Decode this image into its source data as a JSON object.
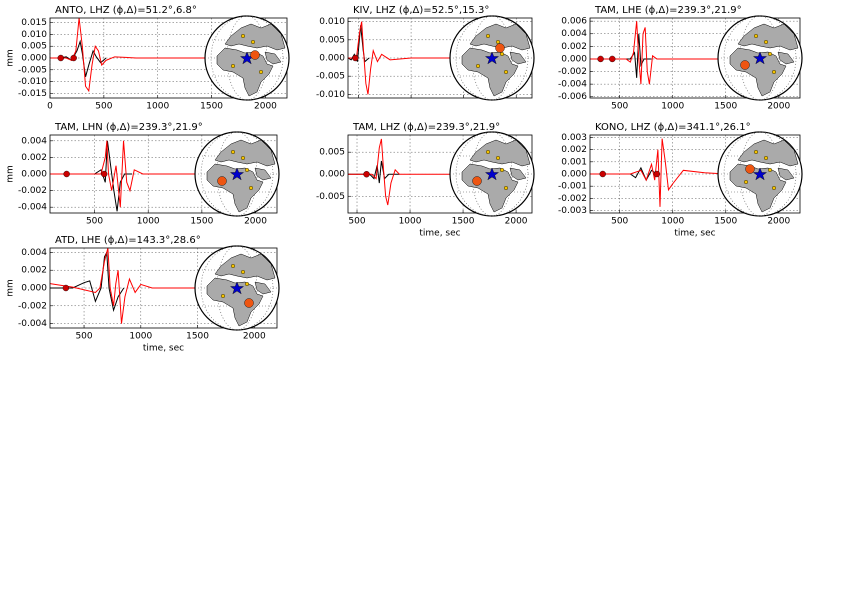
{
  "chart_data": [
    {
      "type": "line",
      "title": "ANTO, LHZ (ϕ,Δ)=51.2°,6.8°",
      "ylabel": "mm",
      "grid": true,
      "xlim": [
        0,
        2200
      ],
      "xticks": [
        0,
        500,
        1000,
        1500,
        2000
      ],
      "ylim": [
        -0.017,
        0.017
      ],
      "yticks": [
        0.015,
        {
          "value": 0.01,
          "label": "0.010"
        },
        0.005,
        {
          "value": 0,
          "label": "0.000"
        },
        -0.005,
        {
          "value": -0.01,
          "label": "-0.010"
        },
        -0.015
      ],
      "series": [
        {
          "color": "#000000",
          "x": [
            0,
            100,
            150,
            200,
            250,
            280,
            300,
            330,
            360,
            400,
            430,
            470,
            520
          ],
          "values": [
            0,
            0,
            0.0005,
            -0.001,
            0.003,
            0.007,
            0.002,
            -0.008,
            -0.003,
            0.003,
            0.0005,
            -0.002,
            0
          ]
        },
        {
          "color": "#ff0000",
          "x": [
            0,
            150,
            200,
            240,
            270,
            300,
            330,
            360,
            390,
            420,
            450,
            480,
            520,
            600,
            800,
            2200
          ],
          "values": [
            0,
            0,
            -0.001,
            0.003,
            0.017,
            0.005,
            -0.012,
            -0.014,
            -0.003,
            0.005,
            0.003,
            -0.003,
            -0.001,
            0.0005,
            0,
            0
          ]
        }
      ],
      "markers": {
        "color": "#cc0000",
        "x": [
          100,
          220
        ],
        "values": [
          0,
          0
        ]
      }
    },
    {
      "type": "line",
      "title": "KIV, LHZ (ϕ,Δ)=52.5°,15.3°",
      "grid": true,
      "xtick_labels": false,
      "xlim": [
        400,
        2150
      ],
      "xticks": [
        500,
        1000,
        1500,
        2000
      ],
      "ylim": [
        -0.011,
        0.011
      ],
      "yticks": [
        {
          "value": 0.01,
          "label": "0.010"
        },
        0.005,
        {
          "value": 0,
          "label": "0.000"
        },
        -0.005,
        {
          "value": -0.01,
          "label": "-0.010"
        }
      ],
      "series": [
        {
          "color": "#000000",
          "x": [
            400,
            430,
            460,
            490,
            520,
            545,
            560,
            600
          ],
          "values": [
            0,
            -0.0005,
            0.001,
            -0.001,
            0.009,
            0.002,
            -0.001,
            0
          ]
        },
        {
          "color": "#ff0000",
          "x": [
            400,
            480,
            510,
            530,
            550,
            570,
            590,
            615,
            640,
            680,
            720,
            800,
            1000,
            2150
          ],
          "values": [
            0,
            0,
            0.007,
            0.01,
            0.001,
            -0.007,
            -0.01,
            -0.003,
            0.002,
            -0.001,
            0.001,
            -0.0005,
            0,
            0
          ]
        }
      ],
      "markers": {
        "color": "#cc0000",
        "x": [
          470
        ],
        "values": [
          0
        ]
      }
    },
    {
      "type": "line",
      "title": "TAM, LHE (ϕ,Δ)=239.3°,21.9°",
      "grid": true,
      "xlim": [
        220,
        2200
      ],
      "xticks": [
        500,
        1000,
        1500,
        2000
      ],
      "ylim": [
        -0.0062,
        0.0065
      ],
      "yticks": [
        0.006,
        0.004,
        0.002,
        {
          "value": 0,
          "label": "0.000"
        },
        -0.002,
        -0.004,
        -0.006
      ],
      "series": [
        {
          "color": "#000000",
          "x": [
            220,
            600,
            640,
            660,
            680,
            700,
            730,
            800
          ],
          "values": [
            0,
            0,
            0.001,
            -0.003,
            0.004,
            -0.001,
            0,
            0
          ]
        },
        {
          "color": "#ff0000",
          "x": [
            220,
            560,
            600,
            630,
            660,
            680,
            700,
            720,
            740,
            760,
            780,
            810,
            850,
            2200
          ],
          "values": [
            0,
            0,
            -0.0005,
            0.001,
            0.006,
            0,
            -0.004,
            0.004,
            0.005,
            -0.002,
            -0.004,
            0.0005,
            0,
            0
          ]
        }
      ],
      "markers": {
        "color": "#cc0000",
        "x": [
          320,
          430
        ],
        "values": [
          0,
          0
        ]
      }
    },
    {
      "type": "line",
      "title": "TAM, LHN (ϕ,Δ)=239.3°,21.9°",
      "ylabel": "mm",
      "grid": true,
      "xlim": [
        85,
        2200
      ],
      "xticks": [
        500,
        1000,
        1500,
        2000
      ],
      "ylim": [
        -0.0047,
        0.0047
      ],
      "yticks": [
        0.004,
        0.002,
        {
          "value": 0,
          "label": "0.000"
        },
        -0.002,
        -0.004
      ],
      "series": [
        {
          "color": "#000000",
          "x": [
            85,
            500,
            560,
            600,
            620,
            650,
            680,
            710,
            740,
            780,
            850
          ],
          "values": [
            0,
            0,
            0.0005,
            -0.001,
            0.004,
            0.001,
            -0.002,
            -0.0045,
            -0.001,
            0,
            0
          ]
        },
        {
          "color": "#ff0000",
          "x": [
            85,
            560,
            600,
            615,
            630,
            660,
            700,
            740,
            770,
            800,
            830,
            870,
            950,
            2200
          ],
          "values": [
            0,
            0,
            0.002,
            0.004,
            0,
            -0.002,
            0.001,
            -0.004,
            0.004,
            -0.001,
            -0.002,
            0.0005,
            0,
            0
          ]
        }
      ],
      "markers": {
        "color": "#cc0000",
        "x": [
          240,
          590
        ],
        "values": [
          0,
          0
        ]
      }
    },
    {
      "type": "line",
      "title": "TAM, LHZ (ϕ,Δ)=239.3°,21.9°",
      "xlabel": "time, sec",
      "grid": true,
      "xlim": [
        415,
        2150
      ],
      "xticks": [
        500,
        1000,
        1500,
        2000
      ],
      "ylim": [
        -0.0088,
        0.0089
      ],
      "yticks": [
        0.005,
        {
          "value": 0,
          "label": "0.000"
        },
        -0.005
      ],
      "series": [
        {
          "color": "#000000",
          "x": [
            415,
            620,
            660,
            690,
            710,
            730,
            760,
            800,
            900
          ],
          "values": [
            0,
            0,
            -0.001,
            0.002,
            -0.002,
            0.003,
            -0.001,
            0,
            0
          ]
        },
        {
          "color": "#ff0000",
          "x": [
            415,
            640,
            680,
            710,
            730,
            750,
            770,
            790,
            820,
            860,
            900,
            2150
          ],
          "values": [
            0,
            0,
            -0.001,
            0.006,
            0.008,
            0.001,
            -0.005,
            -0.007,
            -0.002,
            0.001,
            0,
            0
          ]
        }
      ],
      "markers": {
        "color": "#cc0000",
        "x": [
          590
        ],
        "values": [
          0
        ]
      }
    },
    {
      "type": "line",
      "title": "KONO, LHZ (ϕ,Δ)=341.1°,26.1°",
      "xlabel": "time, sec",
      "grid": true,
      "xlim": [
        220,
        2200
      ],
      "xticks": [
        500,
        1000,
        1500,
        2000
      ],
      "ylim": [
        -0.0032,
        0.0032
      ],
      "yticks": [
        0.003,
        0.002,
        0.001,
        {
          "value": 0,
          "label": "0.000"
        },
        -0.001,
        -0.002,
        -0.003
      ],
      "series": [
        {
          "color": "#000000",
          "x": [
            220,
            600,
            650,
            700,
            750,
            800,
            850
          ],
          "values": [
            0,
            0,
            -0.0003,
            0.0005,
            -0.0005,
            0.0003,
            0
          ]
        },
        {
          "color": "#ff0000",
          "x": [
            220,
            600,
            700,
            750,
            800,
            830,
            860,
            880,
            900,
            930,
            960,
            1000,
            1100,
            1300,
            1500,
            2200
          ],
          "values": [
            0,
            0,
            0.0003,
            -0.0005,
            0.0008,
            -0.0005,
            0.002,
            -0.0027,
            0.0029,
            0.001,
            -0.0013,
            -0.0008,
            0.0003,
            0.0001,
            0,
            0
          ]
        }
      ],
      "markers": {
        "color": "#cc0000",
        "x": [
          340,
          850
        ],
        "values": [
          0,
          0
        ]
      }
    },
    {
      "type": "line",
      "title": "ATD, LHE (ϕ,Δ)=143.3°,28.6°",
      "ylabel": "mm",
      "xlabel": "time, sec",
      "grid": true,
      "xlim": [
        200,
        2200
      ],
      "xticks": [
        500,
        1000,
        1500,
        2000
      ],
      "ylim": [
        -0.0045,
        0.0045
      ],
      "yticks": [
        0.004,
        0.002,
        {
          "value": 0,
          "label": "0.000"
        },
        -0.002,
        -0.004
      ],
      "series": [
        {
          "color": "#000000",
          "x": [
            200,
            400,
            450,
            500,
            550,
            600,
            650,
            680,
            700,
            720,
            760,
            800,
            850
          ],
          "values": [
            0,
            0,
            0.0003,
            0.0006,
            0.0008,
            -0.0015,
            0,
            0.0035,
            0.004,
            0,
            -0.0025,
            -0.001,
            0
          ]
        },
        {
          "color": "#ff0000",
          "x": [
            200,
            400,
            600,
            640,
            680,
            710,
            730,
            760,
            780,
            800,
            830,
            860,
            900,
            950,
            1000,
            1100,
            2200
          ],
          "values": [
            0.0005,
            0.0001,
            -0.0005,
            0,
            0.003,
            0.0045,
            0,
            -0.002,
            0.0005,
            0.002,
            -0.004,
            -0.001,
            0.001,
            -0.0005,
            0.0004,
            0,
            0
          ]
        }
      ],
      "markers": {
        "color": "#cc0000",
        "x": [
          340
        ],
        "values": [
          0
        ]
      }
    }
  ]
}
